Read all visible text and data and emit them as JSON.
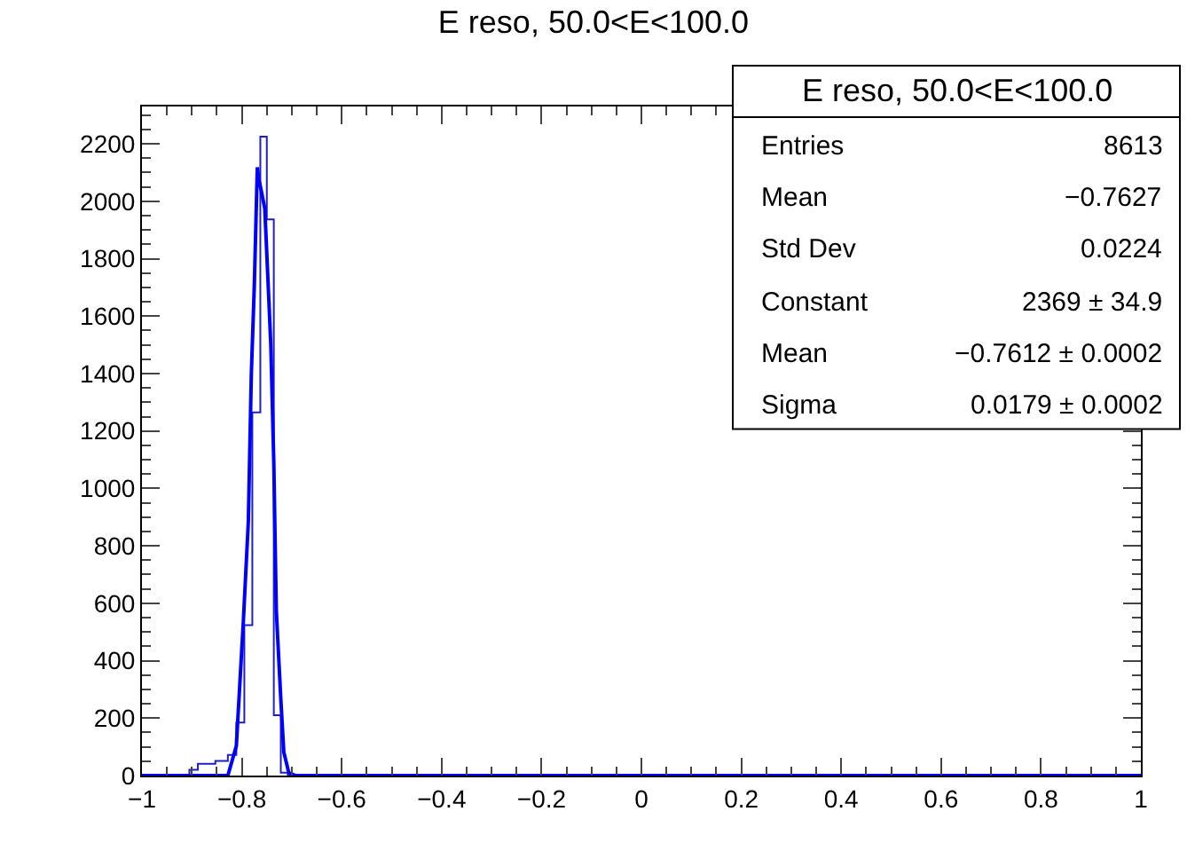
{
  "chart_data": {
    "type": "histogram",
    "title": "E reso, 50.0<E<100.0",
    "annotations": [
      "E reso, 50.0<E<100.0",
      "Entries",
      "8613",
      "Mean",
      "−0.7627",
      "Std Dev",
      "0.0224",
      "Constant",
      "2369 ± 34.9",
      "Mean",
      "−0.7612 ± 0.0002",
      "Sigma",
      "0.0179 ± 0.0002"
    ],
    "series": [
      {
        "color": "#2020c0",
        "bins": [
          -1,
          -0.905,
          -0.888,
          -0.853,
          -0.828,
          -0.811,
          -0.795,
          -0.779,
          -0.763,
          -0.75,
          -0.736,
          -0.722,
          -0.708,
          1
        ],
        "values": [
          0,
          20,
          41,
          51,
          72,
          185,
          524,
          1265,
          2225,
          1937,
          210,
          10,
          0
        ]
      },
      {
        "type": "line",
        "color": "#0000ff",
        "x": [
          -1.0,
          -0.828,
          -0.811,
          -0.797,
          -0.787,
          -0.781,
          -0.775,
          -0.769,
          -0.766,
          -0.761,
          -0.754,
          -0.742,
          -0.736,
          -0.731,
          -0.722,
          -0.716,
          -0.706,
          -0.692,
          1.0
        ],
        "values": [
          0,
          0,
          103,
          535,
          884,
          1398,
          1707,
          2118,
          2077,
          2036,
          1974,
          1501,
          1090,
          576,
          267,
          82,
          10,
          0,
          0
        ]
      }
    ],
    "xlim": [
      -1,
      1
    ],
    "xticks": [
      -1,
      -0.8,
      -0.6,
      -0.4,
      -0.2,
      0,
      0.2,
      0.4,
      0.6,
      0.8,
      1
    ],
    "ylim": [
      0,
      2330
    ],
    "yticks": [
      0,
      200,
      400,
      600,
      800,
      1000,
      1200,
      1400,
      1600,
      1800,
      2000,
      2200
    ]
  }
}
